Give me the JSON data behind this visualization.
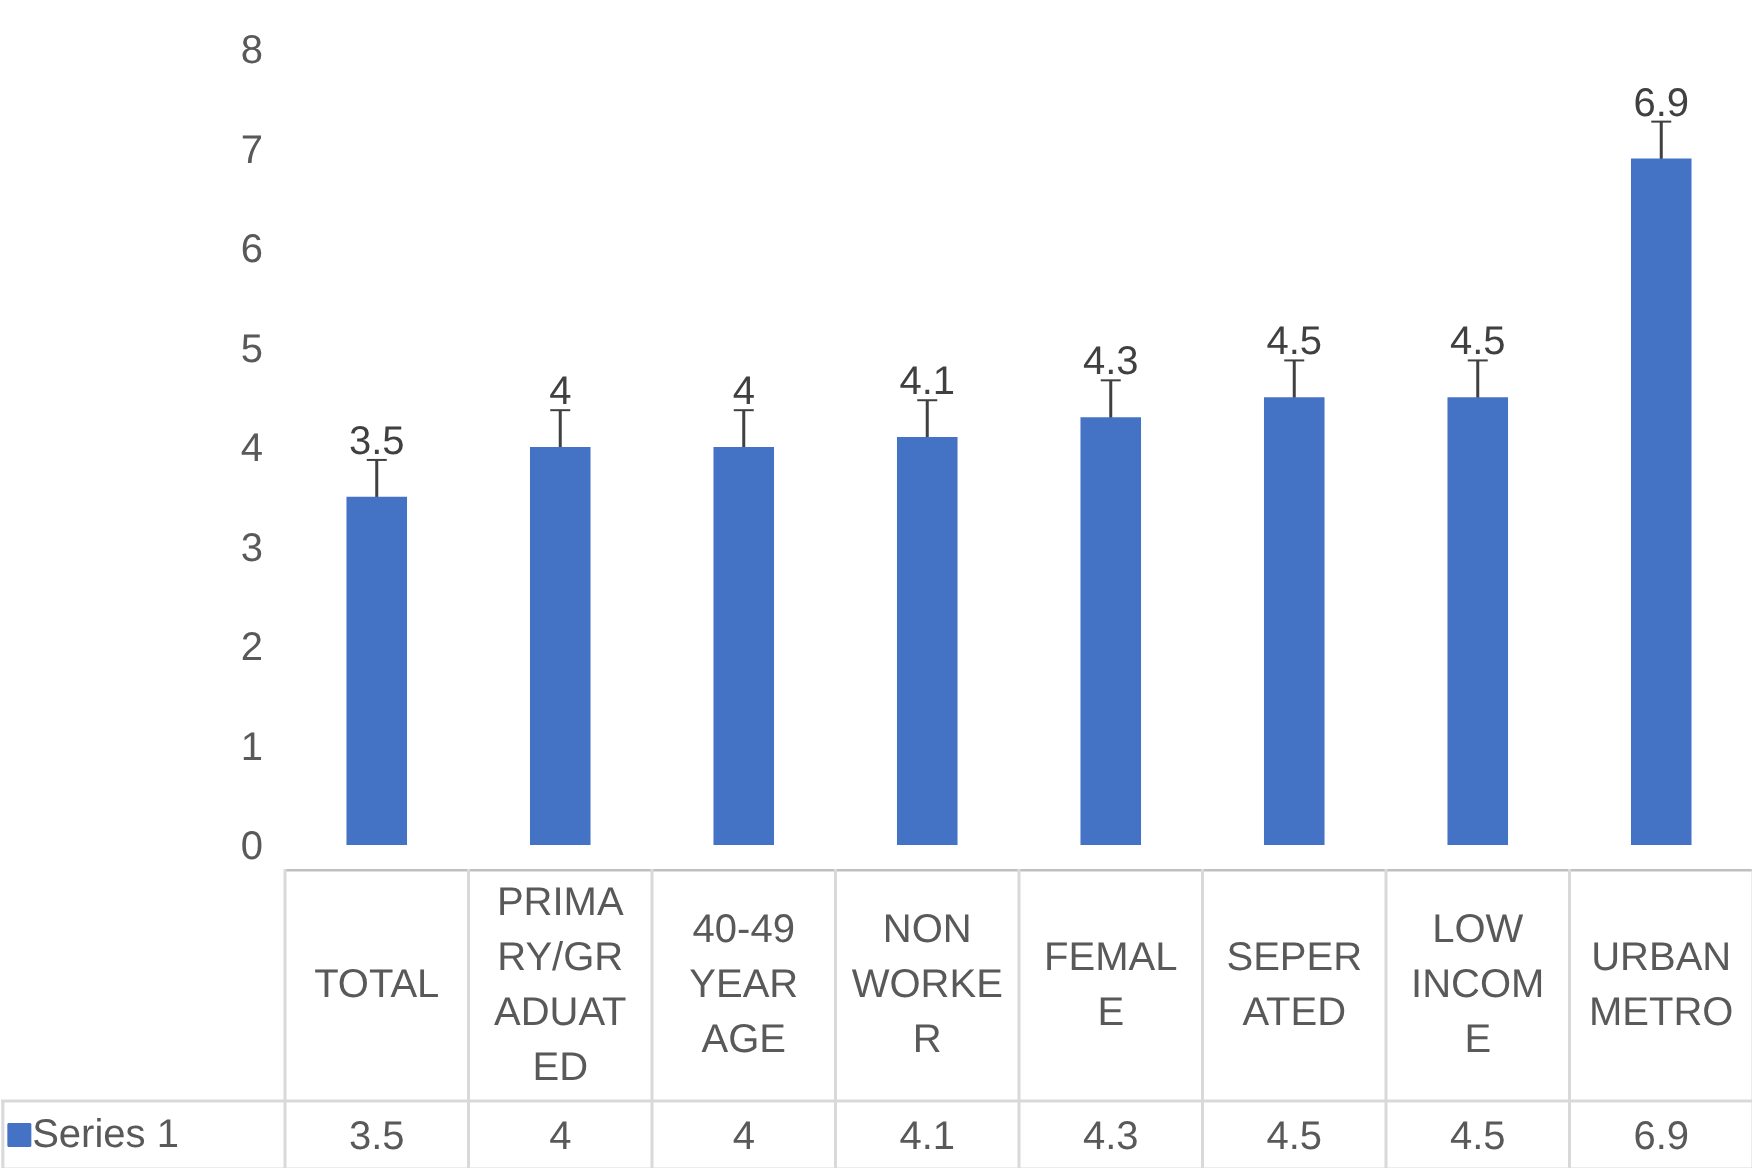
{
  "chart_data": {
    "type": "bar",
    "categories": [
      "TOTAL",
      "PRIMARY/GRADUATED",
      "40-49 YEAR AGE",
      "NON WORKER",
      "FEMALE",
      "SEPERATED",
      "LOW INCOME",
      "URBAN METRO"
    ],
    "series": [
      {
        "name": "Series 1",
        "color": "#4472c4",
        "values": [
          3.5,
          4,
          4,
          4.1,
          4.3,
          4.5,
          4.5,
          6.9
        ],
        "errors": [
          0.37,
          0.37,
          0.37,
          0.37,
          0.37,
          0.37,
          0.37,
          0.37
        ],
        "value_labels": [
          "3.5",
          "4",
          "4",
          "4.1",
          "4.3",
          "4.5",
          "4.5",
          "6.9"
        ]
      }
    ],
    "ylim": [
      0,
      8
    ],
    "yticks": [
      0,
      1,
      2,
      3,
      4,
      5,
      6,
      7,
      8
    ],
    "grid": false,
    "data_labels": true,
    "legend": "bottom"
  }
}
